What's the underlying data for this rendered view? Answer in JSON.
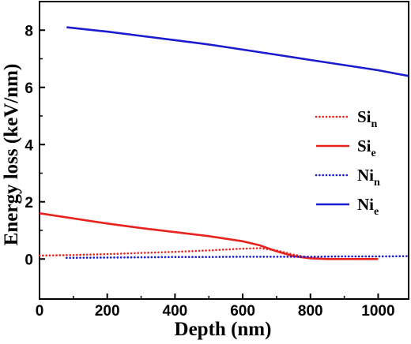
{
  "chart_data": {
    "type": "line",
    "title": "",
    "xlabel": "Depth (nm)",
    "ylabel": "Energy loss (keV/nm)",
    "xlim": [
      0,
      1090
    ],
    "ylim": [
      -1.4,
      9.0
    ],
    "x_ticks": [
      0,
      200,
      400,
      600,
      800,
      1000
    ],
    "y_ticks": [
      0,
      2,
      4,
      6,
      8
    ],
    "x_tick_labels": [
      "0",
      "200",
      "400",
      "600",
      "800",
      "1000"
    ],
    "y_tick_labels": [
      "0",
      "2",
      "4",
      "6",
      "8"
    ],
    "legend_position": "right",
    "grid": false,
    "series": [
      {
        "name": "Si_n",
        "label_main": "Si",
        "label_sub": "n",
        "color": "#e8231e",
        "style": "dotted",
        "points": [
          [
            0,
            0.12
          ],
          [
            100,
            0.14
          ],
          [
            200,
            0.17
          ],
          [
            300,
            0.21
          ],
          [
            400,
            0.25
          ],
          [
            500,
            0.3
          ],
          [
            600,
            0.36
          ],
          [
            650,
            0.38
          ],
          [
            700,
            0.3
          ],
          [
            750,
            0.15
          ],
          [
            800,
            0.04
          ],
          [
            850,
            0.0
          ],
          [
            900,
            0.0
          ],
          [
            1000,
            0.0
          ]
        ]
      },
      {
        "name": "Si_e",
        "label_main": "Si",
        "label_sub": "e",
        "color": "#e8231e",
        "style": "solid",
        "points": [
          [
            0,
            1.6
          ],
          [
            100,
            1.42
          ],
          [
            200,
            1.24
          ],
          [
            300,
            1.08
          ],
          [
            400,
            0.94
          ],
          [
            500,
            0.8
          ],
          [
            600,
            0.62
          ],
          [
            650,
            0.48
          ],
          [
            700,
            0.27
          ],
          [
            750,
            0.1
          ],
          [
            800,
            0.02
          ],
          [
            850,
            0.0
          ],
          [
            900,
            0.0
          ],
          [
            1000,
            0.0
          ]
        ]
      },
      {
        "name": "Ni_n",
        "label_main": "Ni",
        "label_sub": "n",
        "color": "#1b1bcf",
        "style": "dotted",
        "points": [
          [
            80,
            0.04
          ],
          [
            200,
            0.05
          ],
          [
            300,
            0.06
          ],
          [
            400,
            0.07
          ],
          [
            500,
            0.07
          ],
          [
            600,
            0.08
          ],
          [
            700,
            0.08
          ],
          [
            800,
            0.08
          ],
          [
            900,
            0.09
          ],
          [
            1000,
            0.09
          ],
          [
            1090,
            0.1
          ]
        ]
      },
      {
        "name": "Ni_e",
        "label_main": "Ni",
        "label_sub": "e",
        "color": "#1b1bcf",
        "style": "solid",
        "points": [
          [
            80,
            8.1
          ],
          [
            200,
            7.95
          ],
          [
            300,
            7.8
          ],
          [
            400,
            7.65
          ],
          [
            500,
            7.5
          ],
          [
            600,
            7.32
          ],
          [
            700,
            7.14
          ],
          [
            800,
            6.96
          ],
          [
            900,
            6.78
          ],
          [
            1000,
            6.6
          ],
          [
            1090,
            6.4
          ]
        ]
      }
    ]
  }
}
